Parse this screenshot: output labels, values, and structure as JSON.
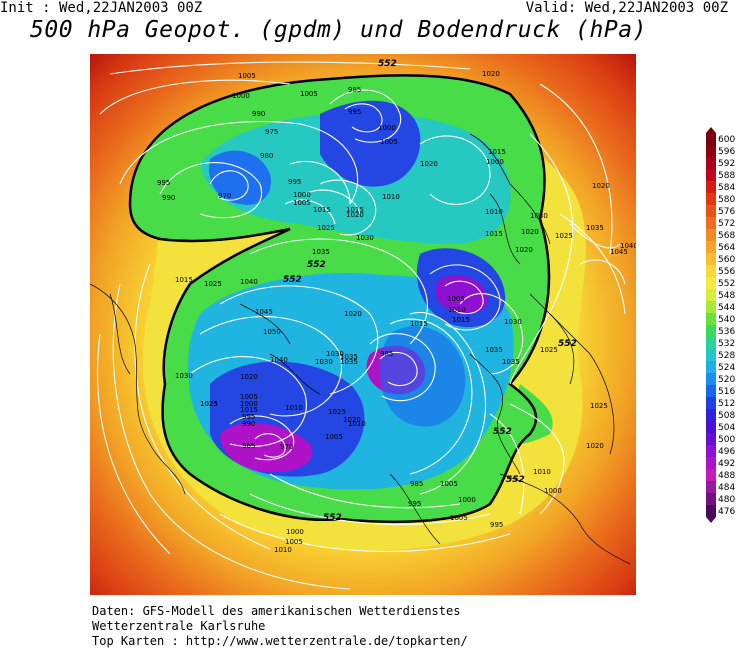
{
  "header": {
    "init": "Init : Wed,22JAN2003 00Z",
    "valid": "Valid: Wed,22JAN2003 00Z",
    "title": "500 hPa Geopot. (gpdm) und Bodendruck (hPa)"
  },
  "legend": {
    "values": [
      "600",
      "596",
      "592",
      "588",
      "584",
      "580",
      "576",
      "572",
      "568",
      "564",
      "560",
      "556",
      "552",
      "548",
      "544",
      "540",
      "536",
      "532",
      "528",
      "524",
      "520",
      "516",
      "512",
      "508",
      "504",
      "500",
      "496",
      "492",
      "488",
      "484",
      "480",
      "476"
    ],
    "colors": [
      "#7a0010",
      "#8e0010",
      "#a8001a",
      "#c2001e",
      "#d41e12",
      "#e03810",
      "#e85418",
      "#ee6e1c",
      "#f28a22",
      "#f6a42a",
      "#f8be30",
      "#fad838",
      "#f4ea40",
      "#d8ee3c",
      "#a8ea38",
      "#66e23a",
      "#38da5a",
      "#28d29a",
      "#22c6c8",
      "#20aee6",
      "#1a8ef0",
      "#1a66ec",
      "#2040e4",
      "#3020dc",
      "#4a10d6",
      "#6a0ed2",
      "#8e10d0",
      "#b012c8",
      "#c818b8",
      "#9a18a0",
      "#74107e",
      "#4e0a5a"
    ]
  },
  "map": {
    "contour_labels_552": [
      "552",
      "552",
      "552",
      "552",
      "552",
      "552",
      "552"
    ],
    "pressure_labels": [
      "1005",
      "1000",
      "1005",
      "1020",
      "990",
      "975",
      "985",
      "995",
      "980",
      "970",
      "995",
      "990",
      "995",
      "1000",
      "1005",
      "1010",
      "1015",
      "1020",
      "1005",
      "1000",
      "1015",
      "1025",
      "1030",
      "1035",
      "1040",
      "1045",
      "1050",
      "1040",
      "1035",
      "1030",
      "1020",
      "1025",
      "1005",
      "1010",
      "1015",
      "1000",
      "995",
      "990",
      "965",
      "970",
      "985",
      "1000",
      "985",
      "995",
      "1005",
      "1010",
      "1020",
      "1025",
      "1035",
      "1030",
      "1015",
      "1020",
      "1005",
      "1010",
      "1015",
      "1020",
      "1015",
      "1010",
      "1005",
      "995",
      "1000",
      "1005",
      "1010",
      "1025",
      "1030",
      "1025",
      "1035",
      "1020",
      "1015",
      "1000",
      "1005",
      "1020",
      "1025",
      "1030",
      "1035",
      "1040",
      "1045",
      "1020",
      "1015",
      "1025",
      "1030",
      "1035",
      "1020",
      "1025",
      "1010",
      "1000"
    ]
  },
  "footer": {
    "line1": "Daten: GFS-Modell des amerikanischen Wetterdienstes",
    "line2": "Wetterzentrale Karlsruhe",
    "line3": "Top Karten :  http://www.wetterzentrale.de/topkarten/"
  }
}
